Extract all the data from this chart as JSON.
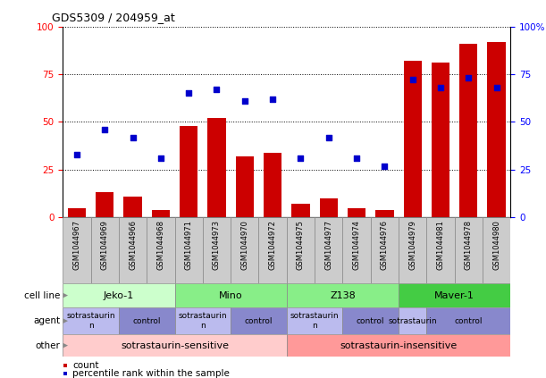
{
  "title": "GDS5309 / 204959_at",
  "samples": [
    "GSM1044967",
    "GSM1044969",
    "GSM1044966",
    "GSM1044968",
    "GSM1044971",
    "GSM1044973",
    "GSM1044970",
    "GSM1044972",
    "GSM1044975",
    "GSM1044977",
    "GSM1044974",
    "GSM1044976",
    "GSM1044979",
    "GSM1044981",
    "GSM1044978",
    "GSM1044980"
  ],
  "bar_values": [
    5,
    13,
    11,
    4,
    48,
    52,
    32,
    34,
    7,
    10,
    5,
    4,
    82,
    81,
    91,
    92
  ],
  "scatter_values": [
    33,
    46,
    42,
    31,
    65,
    67,
    61,
    62,
    31,
    42,
    31,
    27,
    72,
    68,
    73,
    68
  ],
  "cell_lines": [
    {
      "label": "Jeko-1",
      "start": 0,
      "end": 4,
      "color": "#ccffcc"
    },
    {
      "label": "Mino",
      "start": 4,
      "end": 8,
      "color": "#88ee88"
    },
    {
      "label": "Z138",
      "start": 8,
      "end": 12,
      "color": "#88ee88"
    },
    {
      "label": "Maver-1",
      "start": 12,
      "end": 16,
      "color": "#44cc44"
    }
  ],
  "agents": [
    {
      "label": "sotrastaurin\nn",
      "start": 0,
      "end": 2,
      "color": "#bbbbee"
    },
    {
      "label": "control",
      "start": 2,
      "end": 4,
      "color": "#8888cc"
    },
    {
      "label": "sotrastaurin\nn",
      "start": 4,
      "end": 6,
      "color": "#bbbbee"
    },
    {
      "label": "control",
      "start": 6,
      "end": 8,
      "color": "#8888cc"
    },
    {
      "label": "sotrastaurin\nn",
      "start": 8,
      "end": 10,
      "color": "#bbbbee"
    },
    {
      "label": "control",
      "start": 10,
      "end": 12,
      "color": "#8888cc"
    },
    {
      "label": "sotrastaurin",
      "start": 12,
      "end": 13,
      "color": "#bbbbee"
    },
    {
      "label": "control",
      "start": 13,
      "end": 16,
      "color": "#8888cc"
    }
  ],
  "others": [
    {
      "label": "sotrastaurin-sensitive",
      "start": 0,
      "end": 8,
      "color": "#ffcccc"
    },
    {
      "label": "sotrastaurin-insensitive",
      "start": 8,
      "end": 16,
      "color": "#ff9999"
    }
  ],
  "bar_color": "#cc0000",
  "scatter_color": "#0000cc",
  "yticks": [
    0,
    25,
    50,
    75,
    100
  ],
  "ytick_labels_left": [
    "0",
    "25",
    "50",
    "75",
    "100"
  ],
  "ytick_labels_right": [
    "0",
    "25",
    "50",
    "75",
    "100%"
  ],
  "legend_count_label": "count",
  "legend_pct_label": "percentile rank within the sample"
}
